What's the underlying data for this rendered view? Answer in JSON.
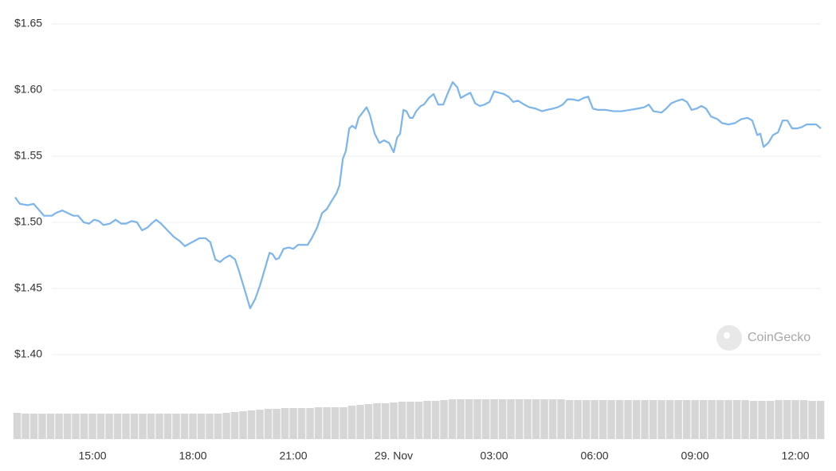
{
  "chart_data": {
    "type": "line",
    "watermark": "CoinGecko",
    "x": [
      -11.31,
      -11.17,
      -10.93,
      -10.76,
      -10.62,
      -10.45,
      -10.21,
      -10.1,
      -9.9,
      -9.74,
      -9.57,
      -9.43,
      -9.26,
      -9.1,
      -8.95,
      -8.81,
      -8.67,
      -8.48,
      -8.31,
      -8.14,
      -8.0,
      -7.83,
      -7.67,
      -7.52,
      -7.36,
      -7.24,
      -7.1,
      -6.95,
      -6.76,
      -6.57,
      -6.4,
      -6.24,
      -6.1,
      -5.95,
      -5.81,
      -5.62,
      -5.48,
      -5.33,
      -5.19,
      -5.05,
      -4.9,
      -4.74,
      -4.62,
      -4.43,
      -4.29,
      -4.14,
      -4.0,
      -3.86,
      -3.71,
      -3.62,
      -3.52,
      -3.43,
      -3.29,
      -3.14,
      -3.0,
      -2.86,
      -2.71,
      -2.57,
      -2.43,
      -2.29,
      -2.14,
      -2.0,
      -1.86,
      -1.71,
      -1.62,
      -1.52,
      -1.43,
      -1.33,
      -1.24,
      -1.14,
      -1.05,
      -0.9,
      -0.81,
      -0.71,
      -0.57,
      -0.43,
      -0.29,
      -0.14,
      0.0,
      0.1,
      0.19,
      0.29,
      0.38,
      0.48,
      0.57,
      0.67,
      0.81,
      0.9,
      1.05,
      1.19,
      1.33,
      1.48,
      1.62,
      1.76,
      1.9,
      2.0,
      2.14,
      2.29,
      2.43,
      2.57,
      2.71,
      2.86,
      3.0,
      3.14,
      3.29,
      3.43,
      3.57,
      3.71,
      3.9,
      4.05,
      4.24,
      4.43,
      4.57,
      4.76,
      4.9,
      5.05,
      5.19,
      5.33,
      5.52,
      5.67,
      5.81,
      5.95,
      6.1,
      6.33,
      6.57,
      6.81,
      7.05,
      7.29,
      7.48,
      7.62,
      7.76,
      8.0,
      8.14,
      8.29,
      8.48,
      8.62,
      8.76,
      8.9,
      9.05,
      9.19,
      9.33,
      9.48,
      9.67,
      9.81,
      10.0,
      10.19,
      10.38,
      10.57,
      10.71,
      10.86,
      10.95,
      11.05,
      11.19,
      11.33,
      11.48,
      11.62,
      11.76,
      11.9,
      12.05,
      12.19,
      12.33,
      12.48,
      12.62,
      12.76
    ],
    "series": [
      {
        "color": "#7cb5ec",
        "values": [
          1.519,
          1.514,
          1.513,
          1.514,
          1.51,
          1.505,
          1.505,
          1.507,
          1.509,
          1.507,
          1.505,
          1.505,
          1.5,
          1.499,
          1.502,
          1.501,
          1.498,
          1.499,
          1.502,
          1.499,
          1.499,
          1.501,
          1.5,
          1.494,
          1.496,
          1.499,
          1.502,
          1.499,
          1.494,
          1.489,
          1.486,
          1.482,
          1.484,
          1.486,
          1.488,
          1.488,
          1.485,
          1.472,
          1.47,
          1.473,
          1.475,
          1.472,
          1.463,
          1.447,
          1.435,
          1.442,
          1.452,
          1.464,
          1.477,
          1.476,
          1.472,
          1.473,
          1.48,
          1.481,
          1.48,
          1.483,
          1.483,
          1.483,
          1.489,
          1.496,
          1.507,
          1.51,
          1.516,
          1.522,
          1.528,
          1.548,
          1.554,
          1.571,
          1.573,
          1.571,
          1.579,
          1.584,
          1.587,
          1.581,
          1.567,
          1.56,
          1.562,
          1.56,
          1.553,
          1.564,
          1.567,
          1.585,
          1.584,
          1.579,
          1.579,
          1.584,
          1.588,
          1.589,
          1.594,
          1.597,
          1.589,
          1.589,
          1.598,
          1.606,
          1.602,
          1.594,
          1.596,
          1.598,
          1.59,
          1.588,
          1.589,
          1.591,
          1.599,
          1.598,
          1.597,
          1.595,
          1.591,
          1.592,
          1.589,
          1.587,
          1.586,
          1.584,
          1.585,
          1.586,
          1.587,
          1.589,
          1.593,
          1.593,
          1.592,
          1.594,
          1.595,
          1.586,
          1.585,
          1.585,
          1.584,
          1.584,
          1.585,
          1.586,
          1.587,
          1.589,
          1.584,
          1.583,
          1.586,
          1.59,
          1.592,
          1.593,
          1.591,
          1.585,
          1.586,
          1.588,
          1.586,
          1.58,
          1.578,
          1.575,
          1.574,
          1.575,
          1.578,
          1.579,
          1.577,
          1.566,
          1.567,
          1.557,
          1.56,
          1.566,
          1.568,
          1.577,
          1.577,
          1.571,
          1.571,
          1.572,
          1.574,
          1.574,
          1.574,
          1.571
        ]
      }
    ],
    "xlim": [
      -11.31,
      12.76
    ],
    "xticks": [
      {
        "value": -9,
        "label": "15:00"
      },
      {
        "value": -6,
        "label": "18:00"
      },
      {
        "value": -3,
        "label": "21:00"
      },
      {
        "value": 0,
        "label": "29. Nov"
      },
      {
        "value": 3,
        "label": "03:00"
      },
      {
        "value": 6,
        "label": "06:00"
      },
      {
        "value": 9,
        "label": "09:00"
      },
      {
        "value": 12,
        "label": "12:00"
      }
    ],
    "ylim": [
      1.4,
      1.65
    ],
    "yticks": [
      {
        "value": 1.65,
        "label": "$1.65"
      },
      {
        "value": 1.6,
        "label": "$1.60"
      },
      {
        "value": 1.55,
        "label": "$1.55"
      },
      {
        "value": 1.5,
        "label": "$1.50"
      },
      {
        "value": 1.45,
        "label": "$1.45"
      },
      {
        "value": 1.4,
        "label": "$1.40"
      }
    ],
    "grid": true,
    "volume": {
      "color": "#d6d6d6",
      "ylim": [
        0,
        60
      ],
      "x": [
        -11.25,
        -11,
        -10.75,
        -10.5,
        -10.25,
        -10,
        -9.75,
        -9.5,
        -9.25,
        -9,
        -8.75,
        -8.5,
        -8.25,
        -8,
        -7.75,
        -7.5,
        -7.25,
        -7,
        -6.75,
        -6.5,
        -6.25,
        -6,
        -5.75,
        -5.5,
        -5.25,
        -5,
        -4.75,
        -4.5,
        -4.25,
        -4,
        -3.75,
        -3.5,
        -3.25,
        -3,
        -2.75,
        -2.5,
        -2.25,
        -2,
        -1.75,
        -1.5,
        -1.25,
        -1,
        -0.75,
        -0.5,
        -0.25,
        0,
        0.25,
        0.5,
        0.75,
        1,
        1.25,
        1.5,
        1.75,
        2,
        2.25,
        2.5,
        2.75,
        3,
        3.25,
        3.5,
        3.75,
        4,
        4.25,
        4.5,
        4.75,
        5,
        5.25,
        5.5,
        5.75,
        6,
        6.25,
        6.5,
        6.75,
        7,
        7.25,
        7.5,
        7.75,
        8,
        8.25,
        8.5,
        8.75,
        9,
        9.25,
        9.5,
        9.75,
        10,
        10.25,
        10.5,
        10.75,
        11,
        11.25,
        11.5,
        11.75,
        12,
        12.25,
        12.5,
        12.75
      ],
      "values": [
        33,
        32,
        32,
        32,
        32,
        32,
        32,
        32,
        32,
        32,
        32,
        32,
        32,
        32,
        32,
        32,
        32,
        32,
        32,
        32,
        32,
        32,
        32,
        32,
        32,
        33,
        34,
        35,
        36,
        37,
        38,
        38,
        39,
        39,
        39,
        39,
        40,
        40,
        40,
        40,
        42,
        43,
        44,
        45,
        45,
        46,
        47,
        47,
        47,
        48,
        48,
        49,
        50,
        50,
        50,
        50,
        50,
        50,
        50,
        50,
        50,
        50,
        50,
        50,
        50,
        50,
        49,
        49,
        49,
        49,
        49,
        49,
        49,
        49,
        49,
        49,
        49,
        49,
        49,
        49,
        49,
        49,
        49,
        49,
        49,
        49,
        49,
        49,
        48,
        48,
        48,
        49,
        49,
        49,
        49,
        48,
        48
      ]
    }
  }
}
